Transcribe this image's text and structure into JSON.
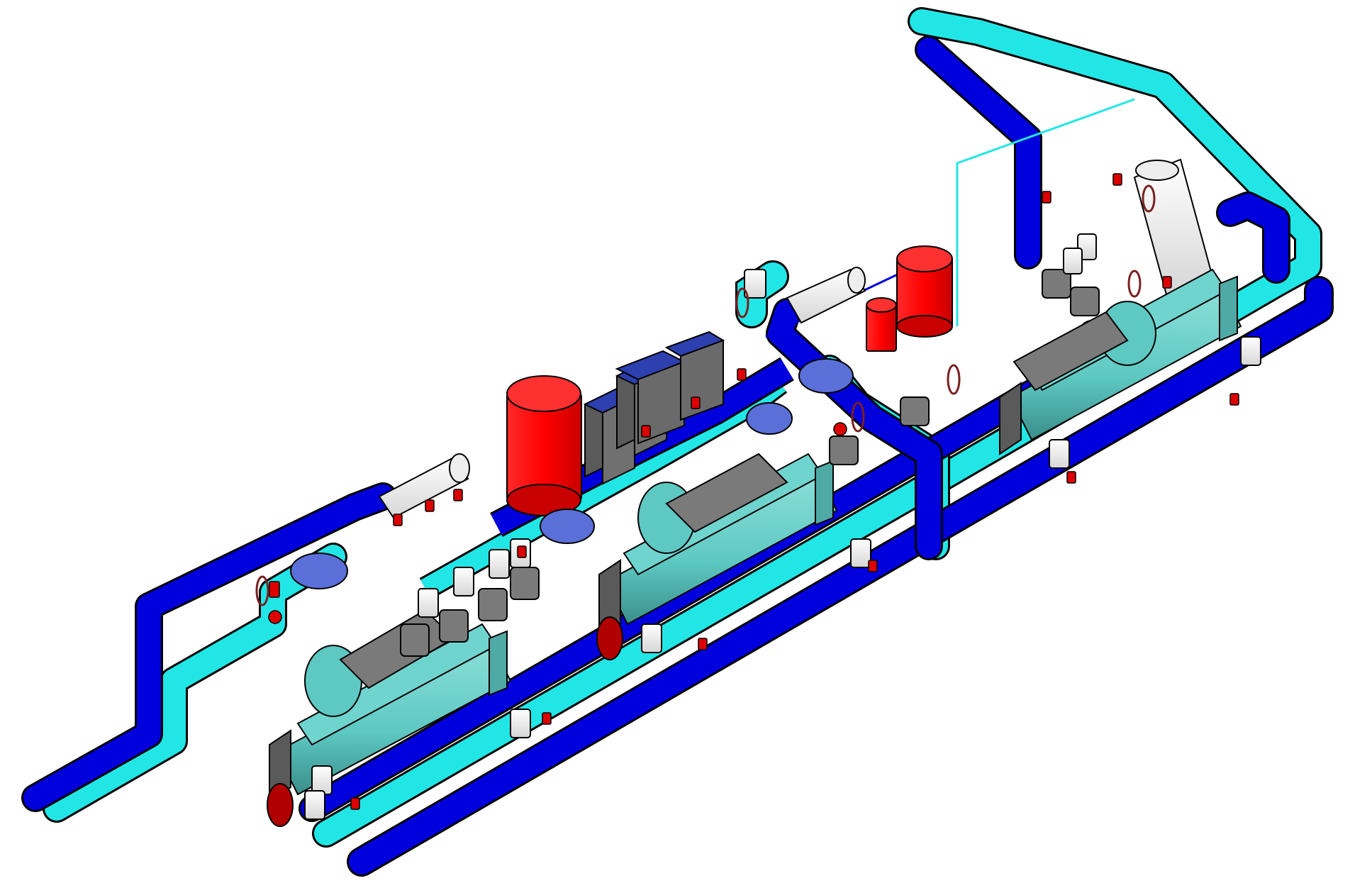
{
  "colors": {
    "supply_pipe": "#0000dd",
    "return_pipe": "#22e6e6",
    "pipe_outline": "#000000",
    "chiller_body": "#5ec8c2",
    "chiller_shadow": "#3a8e8a",
    "chiller_end": "#5a5a5a",
    "chiller_end_red": "#b00000",
    "expansion_tank": "#ff0000",
    "plate_heat_exchanger": "#6a6a6a",
    "strainer": "#5a70d8",
    "header_vessel": "#f2f2f2",
    "valve_red": "#dd0000",
    "pump": "#7a7a7a",
    "background": "#ffffff"
  },
  "components": {
    "chillers": [
      {
        "name": "chiller-1"
      },
      {
        "name": "chiller-2"
      },
      {
        "name": "chiller-3"
      }
    ],
    "expansion_tanks": [
      {
        "name": "expansion-tank-large"
      },
      {
        "name": "expansion-tank-right"
      },
      {
        "name": "expansion-tank-small"
      }
    ],
    "plate_heat_exchangers": [
      {
        "name": "plate-hx-1"
      },
      {
        "name": "plate-hx-2"
      },
      {
        "name": "plate-hx-3"
      },
      {
        "name": "plate-hx-4"
      }
    ],
    "headers": [
      {
        "name": "header-left"
      },
      {
        "name": "header-middle"
      },
      {
        "name": "header-right"
      }
    ],
    "pumps": [
      {
        "name": "pump-group-left"
      },
      {
        "name": "pump-group-middle"
      },
      {
        "name": "pump-group-right"
      }
    ]
  }
}
